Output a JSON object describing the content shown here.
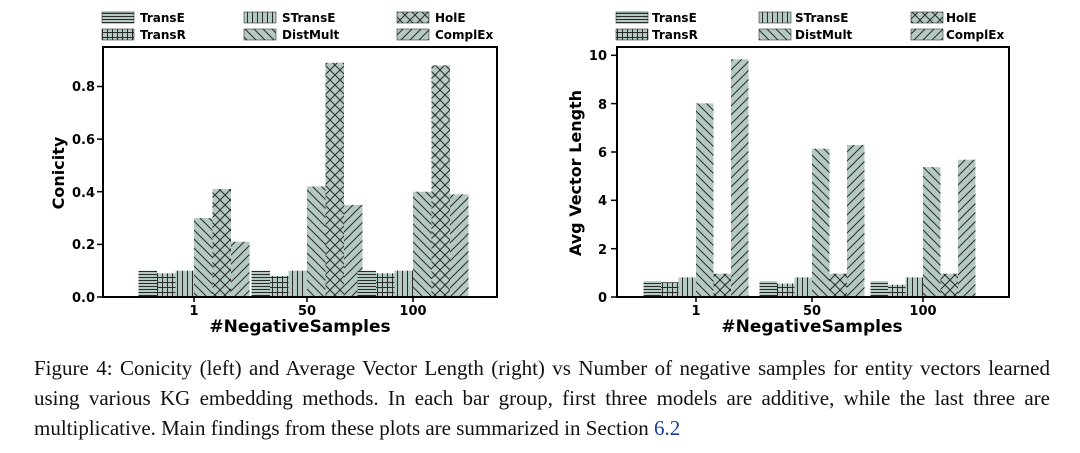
{
  "colors": {
    "bar_fill": "#b4c9c1",
    "hatch_stroke": "#202020",
    "axis": "#000000",
    "ref_link": "#1a3c9a"
  },
  "chart_data": [
    {
      "type": "bar",
      "title": "",
      "xlabel": "#NegativeSamples",
      "ylabel": "Conicity",
      "ylim": [
        0,
        0.95
      ],
      "yticks": [
        "0.0",
        "0.2",
        "0.4",
        "0.6",
        "0.8"
      ],
      "categories": [
        "1",
        "50",
        "100"
      ],
      "legend_position": "top",
      "series": [
        {
          "name": "TransE",
          "hatch": "horizontal",
          "values": [
            0.1,
            0.1,
            0.1
          ]
        },
        {
          "name": "TransR",
          "hatch": "grid",
          "values": [
            0.09,
            0.08,
            0.09
          ]
        },
        {
          "name": "STransE",
          "hatch": "vertical",
          "values": [
            0.1,
            0.1,
            0.1
          ]
        },
        {
          "name": "DistMult",
          "hatch": "backslash",
          "values": [
            0.3,
            0.42,
            0.4
          ]
        },
        {
          "name": "HolE",
          "hatch": "cross",
          "values": [
            0.41,
            0.89,
            0.88
          ]
        },
        {
          "name": "ComplEx",
          "hatch": "slash",
          "values": [
            0.21,
            0.35,
            0.39
          ]
        }
      ]
    },
    {
      "type": "bar",
      "title": "",
      "xlabel": "#NegativeSamples",
      "ylabel": "Avg Vector Length",
      "ylim": [
        0,
        10.2
      ],
      "yticks": [
        "0",
        "2",
        "4",
        "6",
        "8",
        "10"
      ],
      "categories": [
        "1",
        "50",
        "100"
      ],
      "legend_position": "top",
      "series": [
        {
          "name": "TransE",
          "hatch": "horizontal",
          "values": [
            0.65,
            0.65,
            0.65
          ]
        },
        {
          "name": "TransR",
          "hatch": "grid",
          "values": [
            0.6,
            0.55,
            0.5
          ]
        },
        {
          "name": "STransE",
          "hatch": "vertical",
          "values": [
            0.8,
            0.8,
            0.8
          ]
        },
        {
          "name": "DistMult",
          "hatch": "backslash",
          "values": [
            7.9,
            6.05,
            5.3
          ]
        },
        {
          "name": "HolE",
          "hatch": "cross",
          "values": [
            0.95,
            0.95,
            0.95
          ]
        },
        {
          "name": "ComplEx",
          "hatch": "slash",
          "values": [
            9.7,
            6.2,
            5.6
          ]
        }
      ]
    }
  ],
  "caption": {
    "text": "Figure 4: Conicity (left) and Average Vector Length (right) vs Number of negative samples for entity vectors learned using various KG embedding methods. In each bar group, first three models are additive, while the last three are multiplicative. Main findings from these plots are summarized in Section ",
    "section_ref": "6.2"
  }
}
